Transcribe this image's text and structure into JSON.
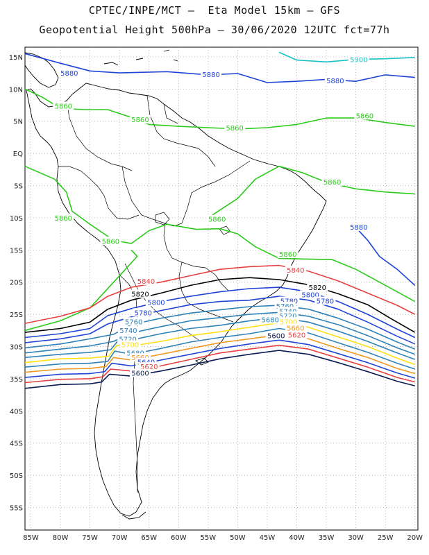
{
  "title_line1": "CPTEC/INPE/MCT –  Eta Model 15km – GFS",
  "title_line2": "Geopotential Height 500hPa – 30/06/2020 12UTC fct=77h",
  "lat_labels": [
    "15N",
    "10N",
    "5N",
    "EQ",
    "5S",
    "10S",
    "15S",
    "20S",
    "25S",
    "30S",
    "35S",
    "40S",
    "45S",
    "50S",
    "55S"
  ],
  "lat_values": [
    15,
    10,
    5,
    0,
    -5,
    -10,
    -15,
    -20,
    -25,
    -30,
    -35,
    -40,
    -45,
    -50,
    -55
  ],
  "lon_labels": [
    "85W",
    "80W",
    "75W",
    "70W",
    "65W",
    "60W",
    "55W",
    "50W",
    "45W",
    "40W",
    "35W",
    "30W",
    "25W",
    "20W"
  ],
  "lon_values": [
    -85,
    -80,
    -75,
    -70,
    -65,
    -60,
    -55,
    -50,
    -45,
    -40,
    -35,
    -30,
    -25,
    -20
  ],
  "contours": [
    {
      "level": "5900",
      "color": "#19c3c3",
      "pts": [
        [
          -43,
          15.7
        ],
        [
          -40,
          14.5
        ],
        [
          -35,
          14.2
        ],
        [
          -30,
          14.6
        ],
        [
          -25,
          14.7
        ],
        [
          -20,
          14.9
        ]
      ],
      "labels": [
        [
          -29.5,
          14.5
        ]
      ]
    },
    {
      "level": "5880",
      "color": "#1f44d6",
      "pts": [
        [
          -86,
          15.5
        ],
        [
          -80,
          14
        ],
        [
          -75,
          12.8
        ],
        [
          -70,
          12.5
        ],
        [
          -62,
          12.7
        ],
        [
          -55,
          12.2
        ],
        [
          -50,
          12.4
        ],
        [
          -45,
          11
        ],
        [
          -40,
          11.2
        ],
        [
          -35,
          11.5
        ],
        [
          -30,
          11.2
        ],
        [
          -25,
          12.2
        ],
        [
          -20,
          11.8
        ]
      ],
      "labels": [
        [
          -78.5,
          12.4
        ],
        [
          -54.5,
          12.2
        ],
        [
          -33.5,
          11.2
        ]
      ]
    },
    {
      "level": "5860",
      "color": "#2bcc1a",
      "pts": [
        [
          -86,
          10
        ],
        [
          -83,
          8.7
        ],
        [
          -80,
          7
        ],
        [
          -76,
          6.8
        ],
        [
          -72,
          6.8
        ],
        [
          -68,
          5.6
        ],
        [
          -65,
          4.5
        ],
        [
          -60,
          4.2
        ],
        [
          -55,
          4
        ],
        [
          -50,
          3.8
        ],
        [
          -45,
          4
        ],
        [
          -40,
          4.5
        ],
        [
          -35,
          5.5
        ],
        [
          -30,
          5.5
        ],
        [
          -25,
          4.8
        ],
        [
          -20,
          4.2
        ]
      ],
      "labels": [
        [
          -79.5,
          7.3
        ],
        [
          -66.5,
          5.2
        ],
        [
          -50.5,
          3.9
        ],
        [
          -28.5,
          5.8
        ]
      ]
    },
    {
      "level": "5860",
      "color": "#2bcc1a",
      "pts": [
        [
          -55,
          -10
        ],
        [
          -50,
          -7
        ],
        [
          -47,
          -4
        ],
        [
          -43,
          -2
        ],
        [
          -39,
          -3
        ],
        [
          -35,
          -4.5
        ],
        [
          -30,
          -5.5
        ],
        [
          -25,
          -6
        ],
        [
          -20,
          -6.3
        ]
      ],
      "labels": [
        [
          -34,
          -4.5
        ]
      ]
    },
    {
      "level": "5860",
      "color": "#2bcc1a",
      "pts": [
        [
          -86,
          -2
        ],
        [
          -81,
          -4
        ],
        [
          -79,
          -6
        ],
        [
          -78,
          -9
        ],
        [
          -75,
          -11
        ],
        [
          -71,
          -13.5
        ],
        [
          -68,
          -14
        ],
        [
          -65,
          -12
        ],
        [
          -62,
          -11
        ],
        [
          -57,
          -11.8
        ],
        [
          -53,
          -11.7
        ],
        [
          -50,
          -12.5
        ],
        [
          -47,
          -14.5
        ],
        [
          -43,
          -16.3
        ],
        [
          -39,
          -16.4
        ],
        [
          -34,
          -16.5
        ]
      ],
      "labels": [
        [
          -79.5,
          -10.1
        ],
        [
          -53.5,
          -10.3
        ],
        [
          -71.5,
          -13.7
        ]
      ]
    },
    {
      "level": "5860",
      "color": "#2bcc1a",
      "pts": [
        [
          -34,
          -16.5
        ],
        [
          -30,
          -18
        ],
        [
          -26,
          -20
        ],
        [
          -22,
          -22
        ],
        [
          -20,
          -23
        ]
      ],
      "labels": [
        [
          -41.5,
          -15.7
        ]
      ]
    },
    {
      "level": "5860",
      "color": "#2bcc1a",
      "pts": [
        [
          -86,
          -27.5
        ],
        [
          -80,
          -26
        ],
        [
          -75,
          -24
        ],
        [
          -71,
          -20
        ],
        [
          -69,
          -18
        ],
        [
          -67,
          -16
        ],
        [
          -68,
          -15
        ]
      ],
      "labels": []
    },
    {
      "level": "5880",
      "color": "#1f44d6",
      "pts": [
        [
          -30,
          -11.5
        ],
        [
          -28,
          -13.5
        ],
        [
          -26,
          -16
        ],
        [
          -23,
          -18
        ],
        [
          -20,
          -20.5
        ]
      ],
      "labels": [
        [
          -29.5,
          -11.5
        ]
      ]
    },
    {
      "level": "5840",
      "color": "#e84040",
      "pts": [
        [
          -86,
          -26.4
        ],
        [
          -80,
          -25.3
        ],
        [
          -75,
          -24
        ],
        [
          -72,
          -22.2
        ],
        [
          -68,
          -20.8
        ],
        [
          -63,
          -20
        ],
        [
          -58,
          -19
        ],
        [
          -53,
          -18
        ],
        [
          -48,
          -17.6
        ],
        [
          -43,
          -17.4
        ],
        [
          -38,
          -18.3
        ],
        [
          -33,
          -19.8
        ],
        [
          -28,
          -21.7
        ],
        [
          -23,
          -23.6
        ],
        [
          -20,
          -25
        ]
      ],
      "labels": [
        [
          -65.5,
          -19.9
        ],
        [
          -40.2,
          -18.2
        ]
      ]
    },
    {
      "level": "5820",
      "color": "#000000",
      "pts": [
        [
          -86,
          -27.8
        ],
        [
          -80,
          -27.2
        ],
        [
          -75,
          -26.2
        ],
        [
          -72,
          -24.2
        ],
        [
          -68,
          -22.8
        ],
        [
          -63,
          -21.7
        ],
        [
          -58,
          -20.5
        ],
        [
          -53,
          -19.6
        ],
        [
          -48,
          -19.3
        ],
        [
          -43,
          -19.6
        ],
        [
          -38,
          -20.4
        ],
        [
          -33,
          -21.8
        ],
        [
          -28,
          -23.5
        ],
        [
          -24,
          -25.7
        ],
        [
          -20,
          -27.8
        ]
      ],
      "labels": [
        [
          -66.5,
          -21.9
        ],
        [
          -36.5,
          -20.9
        ]
      ]
    },
    {
      "level": "5800",
      "color": "#1f44d6",
      "pts": [
        [
          -86,
          -28.6
        ],
        [
          -80,
          -28
        ],
        [
          -75,
          -27.2
        ],
        [
          -72,
          -25.2
        ],
        [
          -68,
          -24.1
        ],
        [
          -63,
          -23
        ],
        [
          -58,
          -22.2
        ],
        [
          -53,
          -21.5
        ],
        [
          -48,
          -21
        ],
        [
          -43,
          -20.8
        ],
        [
          -38,
          -21.5
        ],
        [
          -33,
          -23
        ],
        [
          -28,
          -25
        ],
        [
          -23,
          -27.3
        ],
        [
          -20,
          -28.6
        ]
      ],
      "labels": [
        [
          -63.8,
          -23.2
        ],
        [
          -37.7,
          -22
        ]
      ]
    },
    {
      "level": "5780",
      "color": "#1f44d6",
      "pts": [
        [
          -86,
          -29.4
        ],
        [
          -80,
          -28.8
        ],
        [
          -75,
          -28
        ],
        [
          -72,
          -26.5
        ],
        [
          -68,
          -25.4
        ],
        [
          -63,
          -24.4
        ],
        [
          -58,
          -23.5
        ],
        [
          -53,
          -23
        ],
        [
          -48,
          -22.8
        ],
        [
          -43,
          -22.2
        ],
        [
          -38,
          -22.8
        ],
        [
          -33,
          -24.2
        ],
        [
          -28,
          -26.2
        ],
        [
          -23,
          -28.4
        ],
        [
          -20,
          -29.6
        ]
      ],
      "labels": [
        [
          -66,
          -24.8
        ],
        [
          -41.3,
          -23
        ],
        [
          -35.2,
          -23
        ]
      ]
    },
    {
      "level": "5760",
      "color": "#2e82b8",
      "pts": [
        [
          -86,
          -30.2
        ],
        [
          -80,
          -29.6
        ],
        [
          -75,
          -28.8
        ],
        [
          -71,
          -28.1
        ],
        [
          -68,
          -26.6
        ],
        [
          -63,
          -25.6
        ],
        [
          -58,
          -24.8
        ],
        [
          -53,
          -24.3
        ],
        [
          -48,
          -23.8
        ],
        [
          -43,
          -23.6
        ],
        [
          -38,
          -24.2
        ],
        [
          -33,
          -25.6
        ],
        [
          -28,
          -27.3
        ],
        [
          -23,
          -29.3
        ],
        [
          -20,
          -30.4
        ]
      ],
      "labels": [
        [
          -67.6,
          -26.2
        ],
        [
          -42,
          -23.8
        ]
      ]
    },
    {
      "level": "5740",
      "color": "#2e82b8",
      "pts": [
        [
          -86,
          -31
        ],
        [
          -80,
          -30.4
        ],
        [
          -75,
          -29.9
        ],
        [
          -71,
          -29.2
        ],
        [
          -68,
          -27.9
        ],
        [
          -63,
          -26.9
        ],
        [
          -58,
          -26
        ],
        [
          -53,
          -25.5
        ],
        [
          -48,
          -25
        ],
        [
          -43,
          -24.7
        ],
        [
          -38,
          -25.3
        ],
        [
          -33,
          -26.6
        ],
        [
          -28,
          -28.3
        ],
        [
          -23,
          -30.2
        ],
        [
          -20,
          -31.2
        ]
      ],
      "labels": [
        [
          -68.5,
          -27.6
        ],
        [
          -41.5,
          -24.6
        ]
      ]
    },
    {
      "level": "5720",
      "color": "#2e82b8",
      "pts": [
        [
          -86,
          -31.7
        ],
        [
          -80,
          -31.2
        ],
        [
          -75,
          -30.9
        ],
        [
          -71.5,
          -30.5
        ],
        [
          -70,
          -28.8
        ],
        [
          -68,
          -29
        ],
        [
          -63,
          -28
        ],
        [
          -58,
          -27.2
        ],
        [
          -53,
          -26.7
        ],
        [
          -48,
          -26
        ],
        [
          -43,
          -25.5
        ],
        [
          -38,
          -26.2
        ],
        [
          -33,
          -27.6
        ],
        [
          -28,
          -29.2
        ],
        [
          -23,
          -31
        ],
        [
          -20,
          -32
        ]
      ],
      "labels": [
        [
          -68.6,
          -28.9
        ],
        [
          -41.5,
          -25.3
        ]
      ]
    },
    {
      "level": "5700",
      "color": "#ffe014",
      "pts": [
        [
          -86,
          -32.5
        ],
        [
          -80,
          -31.9
        ],
        [
          -75,
          -31.8
        ],
        [
          -71.8,
          -31.5
        ],
        [
          -70.5,
          -29.8
        ],
        [
          -68.5,
          -30
        ],
        [
          -63,
          -29.2
        ],
        [
          -58,
          -28.3
        ],
        [
          -53,
          -27.7
        ],
        [
          -48,
          -27
        ],
        [
          -43,
          -26.3
        ],
        [
          -38,
          -27
        ],
        [
          -33,
          -28.5
        ],
        [
          -28,
          -30
        ],
        [
          -23,
          -31.8
        ],
        [
          -20,
          -32.8
        ]
      ],
      "labels": [
        [
          -68.2,
          -29.8
        ],
        [
          -41.4,
          -26.2
        ]
      ]
    },
    {
      "level": "5680",
      "color": "#2e82b8",
      "pts": [
        [
          -86,
          -33.2
        ],
        [
          -80,
          -32.7
        ],
        [
          -75,
          -32.6
        ],
        [
          -72,
          -32.3
        ],
        [
          -70.8,
          -30.7
        ],
        [
          -68,
          -31.2
        ],
        [
          -63,
          -30.3
        ],
        [
          -58,
          -29.3
        ],
        [
          -53,
          -28.6
        ],
        [
          -48,
          -28
        ],
        [
          -43,
          -27.2
        ],
        [
          -38,
          -27.9
        ],
        [
          -33,
          -29.4
        ],
        [
          -28,
          -30.9
        ],
        [
          -23,
          -32.6
        ],
        [
          -20,
          -33.5
        ]
      ],
      "labels": [
        [
          -67.3,
          -31.1
        ],
        [
          -44.5,
          -25.9
        ]
      ]
    },
    {
      "level": "5660",
      "color": "#f09820",
      "pts": [
        [
          -86,
          -34
        ],
        [
          -80,
          -33.5
        ],
        [
          -75,
          -33.4
        ],
        [
          -72.3,
          -33.1
        ],
        [
          -71,
          -31.7
        ],
        [
          -68,
          -32.1
        ],
        [
          -63,
          -31.2
        ],
        [
          -58,
          -30.3
        ],
        [
          -53,
          -29.4
        ],
        [
          -48,
          -28.8
        ],
        [
          -43,
          -28.2
        ],
        [
          -38,
          -28.8
        ],
        [
          -33,
          -30.3
        ],
        [
          -28,
          -31.7
        ],
        [
          -23,
          -33.4
        ],
        [
          -20,
          -34.2
        ]
      ],
      "labels": [
        [
          -66.5,
          -31.8
        ],
        [
          -40.2,
          -27.2
        ]
      ]
    },
    {
      "level": "5640",
      "color": "#1f44d6",
      "pts": [
        [
          -86,
          -34.8
        ],
        [
          -80,
          -34.3
        ],
        [
          -75,
          -34.2
        ],
        [
          -72.5,
          -33.9
        ],
        [
          -71.3,
          -32.6
        ],
        [
          -68,
          -33
        ],
        [
          -63,
          -32.1
        ],
        [
          -58,
          -31.2
        ],
        [
          -53,
          -30.3
        ],
        [
          -48,
          -29.6
        ],
        [
          -43,
          -29
        ],
        [
          -38,
          -29.7
        ],
        [
          -33,
          -31.1
        ],
        [
          -28,
          -32.5
        ],
        [
          -23,
          -34.1
        ],
        [
          -20,
          -34.9
        ]
      ],
      "labels": [
        [
          -65.5,
          -32.5
        ]
      ]
    },
    {
      "level": "5620",
      "color": "#e84040",
      "pts": [
        [
          -86,
          -35.6
        ],
        [
          -80,
          -35.1
        ],
        [
          -75,
          -35
        ],
        [
          -72.8,
          -34.7
        ],
        [
          -71.5,
          -33.5
        ],
        [
          -68,
          -33.8
        ],
        [
          -63,
          -33
        ],
        [
          -58,
          -32
        ],
        [
          -53,
          -31
        ],
        [
          -48,
          -30.4
        ],
        [
          -43,
          -29.8
        ],
        [
          -38,
          -30.4
        ],
        [
          -33,
          -31.8
        ],
        [
          -28,
          -33.2
        ],
        [
          -23,
          -34.8
        ],
        [
          -20,
          -35.5
        ]
      ],
      "labels": [
        [
          -65,
          -33.2
        ],
        [
          -40,
          -28.3
        ]
      ]
    },
    {
      "level": "5600",
      "color": "#0a1c52",
      "pts": [
        [
          -86,
          -36.5
        ],
        [
          -80,
          -35.9
        ],
        [
          -75,
          -35.8
        ],
        [
          -73,
          -35.5
        ],
        [
          -71.7,
          -34.3
        ],
        [
          -68,
          -34.6
        ],
        [
          -63,
          -33.8
        ],
        [
          -58,
          -32.9
        ],
        [
          -53,
          -31.9
        ],
        [
          -48,
          -31.2
        ],
        [
          -43,
          -30.6
        ],
        [
          -38,
          -31.2
        ],
        [
          -33,
          -32.5
        ],
        [
          -28,
          -33.9
        ],
        [
          -23,
          -35.4
        ],
        [
          -20,
          -36.1
        ]
      ],
      "labels": [
        [
          -66.5,
          -34.2
        ],
        [
          -43.5,
          -28.4
        ]
      ]
    }
  ]
}
